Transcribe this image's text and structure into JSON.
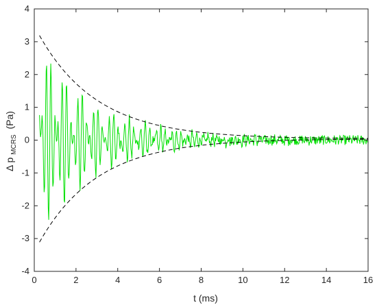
{
  "chart_data": {
    "type": "line",
    "xlabel": "t (ms)",
    "ylabel": {
      "prefix": "Δ p",
      "subscript": "MCRS",
      "suffix": "(Pa)"
    },
    "xlim": [
      0,
      16
    ],
    "ylim": [
      -4,
      4
    ],
    "xticks": [
      0,
      2,
      4,
      6,
      8,
      10,
      12,
      14,
      16
    ],
    "yticks": [
      -4,
      -3,
      -2,
      -1,
      0,
      1,
      2,
      3,
      4
    ],
    "grid": false,
    "signal": {
      "color": "#00e000",
      "t_start": 0.25,
      "t_end": 16,
      "samples": 640,
      "amplitude_start": 3.0,
      "decay_ms": 2.8,
      "noise_floor": 0.15,
      "beat_components_khz": [
        4.0,
        5.3
      ]
    },
    "envelope": {
      "style": "dashed",
      "color": "#000000",
      "t_start": 0.25,
      "t_end": 16,
      "amplitude_start": 3.15,
      "decay_ms": 2.8,
      "offset": 0.04
    }
  }
}
